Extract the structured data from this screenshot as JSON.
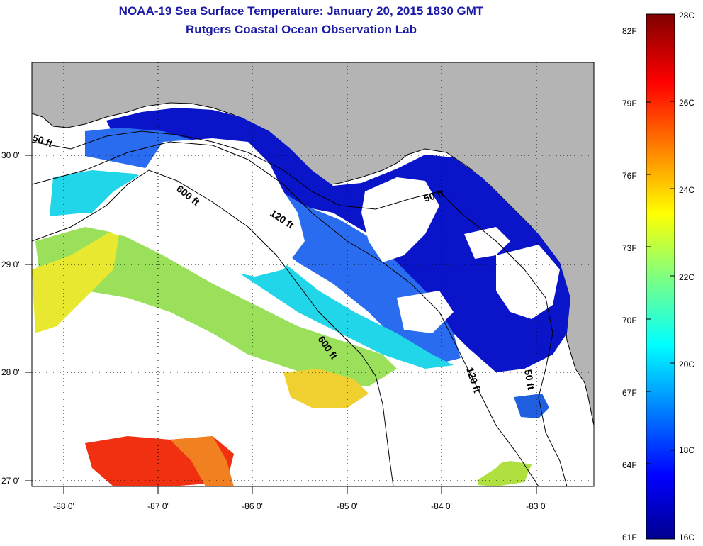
{
  "header": {
    "title": "NOAA-19 Sea Surface Temperature:  January 20, 2015 1830 GMT",
    "subtitle": "Rutgers Coastal Ocean Observation Lab"
  },
  "map": {
    "lat_labels": [
      "30 0'",
      "29 0'",
      "28 0'",
      "27 0'"
    ],
    "lon_labels": [
      "-88 0'",
      "-87 0'",
      "-86 0'",
      "-85 0'",
      "-84 0'",
      "-83 0'"
    ],
    "contour_labels": [
      "50 ft",
      "600 ft",
      "120 ft",
      "50 ft",
      "600 ft",
      "120 ft",
      "50 ft"
    ],
    "land_color": "#b4b4b4",
    "cloud_color": "#ffffff"
  },
  "colorbar": {
    "celsius_labels": [
      "28C",
      "26C",
      "24C",
      "22C",
      "20C",
      "18C",
      "16C"
    ],
    "fahrenheit_labels": [
      "82F",
      "79F",
      "76F",
      "73F",
      "70F",
      "67F",
      "64F",
      "61F"
    ],
    "min_c": 16,
    "max_c": 28
  }
}
